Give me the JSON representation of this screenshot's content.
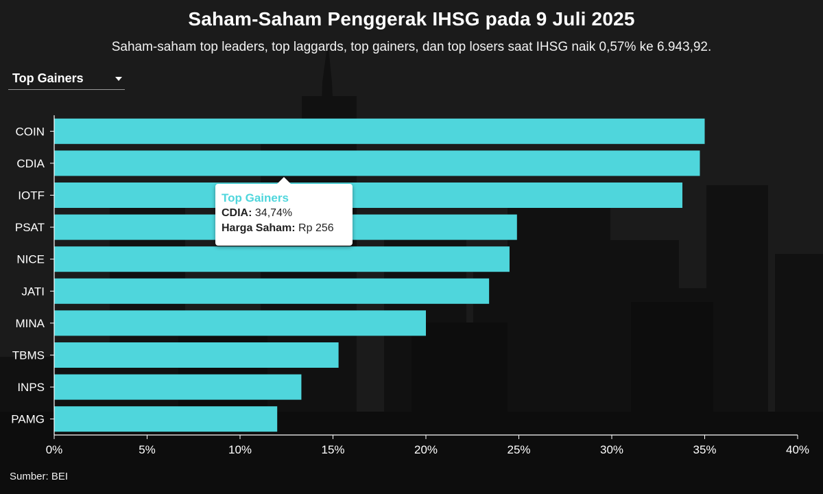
{
  "title": "Saham-Saham Penggerak IHSG pada 9 Juli 2025",
  "subtitle": "Saham-saham top leaders, top laggards, top gainers, dan top losers saat IHSG naik 0,57% ke 6.943,92.",
  "dropdown": {
    "selected": "Top Gainers"
  },
  "source": "Sumber: BEI",
  "tooltip": {
    "title": "Top Gainers",
    "ticker_label": "CDIA:",
    "ticker_value": "34,74%",
    "price_label": "Harga Saham:",
    "price_value": "Rp 256"
  },
  "colors": {
    "bar": "#4fd6dc",
    "axis": "#ffffff",
    "background": "#1b1b1b"
  },
  "chart_data": {
    "type": "bar",
    "orientation": "horizontal",
    "categories": [
      "COIN",
      "CDIA",
      "IOTF",
      "PSAT",
      "NICE",
      "JATI",
      "MINA",
      "TBMS",
      "INPS",
      "PAMG"
    ],
    "values": [
      35.0,
      34.74,
      33.8,
      24.9,
      24.5,
      23.4,
      20.0,
      15.3,
      13.3,
      12.0
    ],
    "xlim": [
      0,
      40
    ],
    "xticks": [
      0,
      5,
      10,
      15,
      20,
      25,
      30,
      35,
      40
    ],
    "xtick_labels": [
      "0%",
      "5%",
      "10%",
      "15%",
      "20%",
      "25%",
      "30%",
      "35%",
      "40%"
    ],
    "grid": false
  }
}
